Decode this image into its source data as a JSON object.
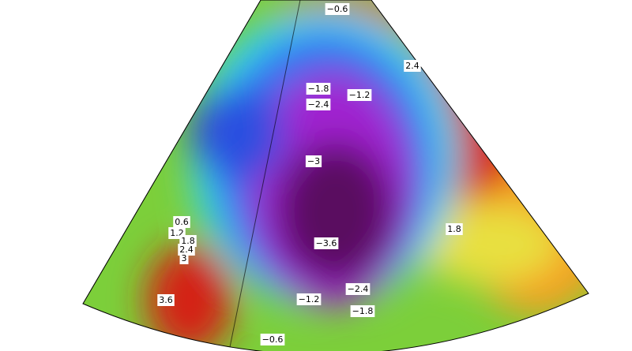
{
  "contour_labels": [
    "−0.6",
    "2.4",
    "−1.8",
    "−1.2",
    "−2.4",
    "−3",
    "1.8",
    "0.6",
    "1.2",
    "1.8",
    "2.4",
    "3",
    "−3.6",
    "3.6",
    "−2.4",
    "−1.2",
    "−1.8",
    "−0.6"
  ]
}
